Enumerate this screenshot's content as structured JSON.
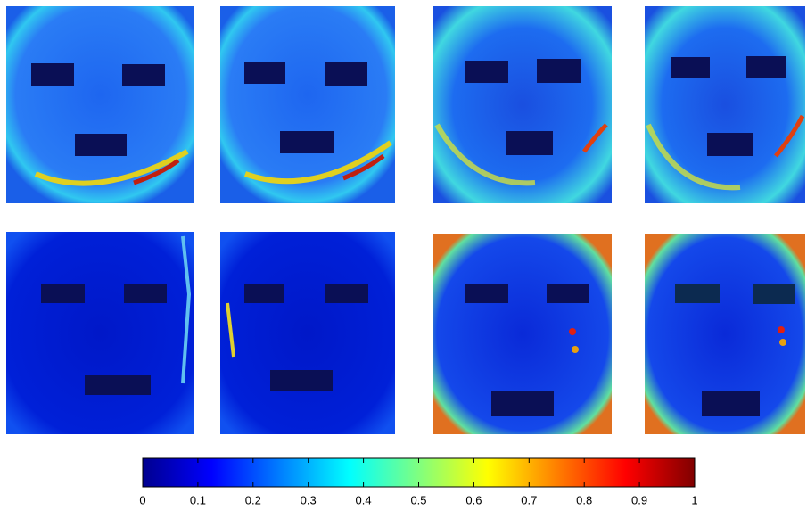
{
  "colorbar": {
    "lim": [
      0,
      1
    ],
    "ticks": [
      0,
      0.1,
      0.2,
      0.3,
      0.4,
      0.5,
      0.6,
      0.7,
      0.8,
      0.9,
      1
    ]
  }
}
